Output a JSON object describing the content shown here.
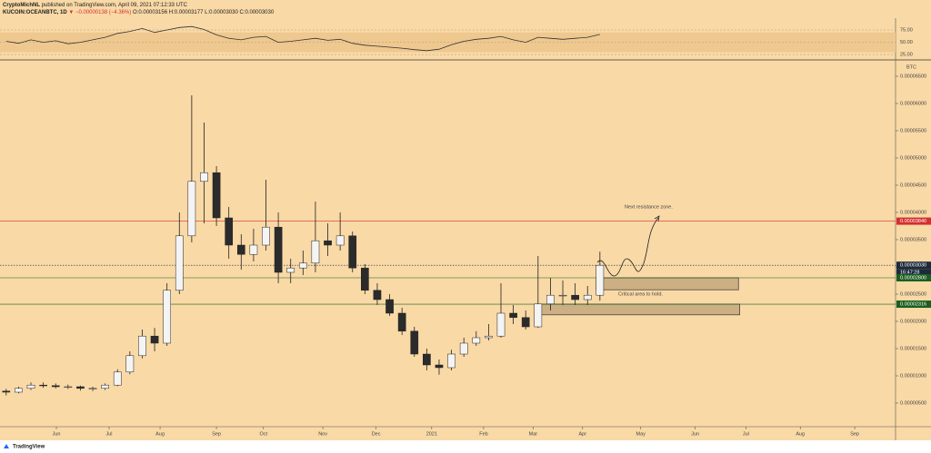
{
  "header": {
    "author": "CryptoMichNL",
    "published": "published on TradingView.com, April 09, 2021 07:12:33 UTC",
    "symbol": "KUCOIN:OCEANBTC, 1D",
    "change": "▼ −0.00000138 (−4.36%)",
    "open": "O:0.00003156",
    "high": "H:0.00003177",
    "low": "L:0.00003030",
    "close": "C:0.00003030",
    "countdown": "16:47:28",
    "logo": "TradingView"
  },
  "chart_data": [
    {
      "type": "candlestick",
      "unit": "BTC",
      "x": [
        0.5,
        1.5,
        2.5,
        3.5,
        4.5,
        5.5,
        6.5,
        7.5,
        8.5,
        9.5,
        10.5,
        11.5,
        12.5,
        13.5,
        14.5,
        15.5,
        16.5,
        17.5,
        18.5,
        19.5,
        20.5,
        21.5,
        22.5,
        23.5,
        24.5,
        25.5,
        26.5,
        27.5,
        28.5,
        29.5,
        30.5,
        31.5,
        32.5,
        33.5,
        34.5,
        35.5,
        36.5,
        37.5,
        38.5,
        39.5,
        40.5,
        41.5,
        42.5,
        43.5,
        44.5,
        45.5,
        46.5,
        47.5,
        48.5
      ],
      "open": [
        7.2e-06,
        7e-06,
        7.7e-06,
        8.3e-06,
        8.2e-06,
        8e-06,
        8e-06,
        7.7e-06,
        7.7e-06,
        8.3e-06,
        1.07e-05,
        1.37e-05,
        1.73e-05,
        1.6e-05,
        2.57e-05,
        3.57e-05,
        4.57e-05,
        4.73e-05,
        3.9e-05,
        3.4e-05,
        3.23e-05,
        3.4e-05,
        3.73e-05,
        2.9e-05,
        2.98e-05,
        3.07e-05,
        3.48e-05,
        3.4e-05,
        3.57e-05,
        2.98e-05,
        2.57e-05,
        2.4e-05,
        2.15e-05,
        1.82e-05,
        1.4e-05,
        1.2e-05,
        1.15e-05,
        1.4e-05,
        1.6e-05,
        1.7e-05,
        1.73e-05,
        2.15e-05,
        2.07e-05,
        1.9e-05,
        2.32e-05,
        2.48e-05,
        2.48e-05,
        2.4e-05,
        2.48e-05
      ],
      "high": [
        7.6e-06,
        8e-06,
        8.8e-06,
        8.8e-06,
        8.6e-06,
        8.4e-06,
        8.2e-06,
        8e-06,
        8.6e-06,
        1.12e-05,
        1.45e-05,
        1.85e-05,
        1.88e-05,
        2.7e-05,
        4e-05,
        6.15e-05,
        5.65e-05,
        4.85e-05,
        4.1e-05,
        3.6e-05,
        3.7e-05,
        4.6e-05,
        4e-05,
        3.15e-05,
        3.3e-05,
        4.2e-05,
        3.8e-05,
        4e-05,
        3.65e-05,
        3.05e-05,
        2.7e-05,
        2.5e-05,
        2.25e-05,
        1.9e-05,
        1.5e-05,
        1.3e-05,
        1.48e-05,
        1.7e-05,
        1.82e-05,
        1.95e-05,
        2.7e-05,
        2.3e-05,
        2.2e-05,
        3.2e-05,
        2.8e-05,
        2.75e-05,
        2.7e-05,
        2.65e-05,
        3.28e-05
      ],
      "low": [
        6.4e-06,
        6.8e-06,
        7.4e-06,
        7.8e-06,
        7.7e-06,
        7.6e-06,
        7.3e-06,
        7.2e-06,
        7.4e-06,
        8.1e-06,
        1.03e-05,
        1.32e-05,
        1.45e-05,
        1.55e-05,
        2.5e-05,
        3.45e-05,
        3.8e-05,
        3.75e-05,
        3.15e-05,
        2.95e-05,
        3.1e-05,
        3.3e-05,
        2.7e-05,
        2.7e-05,
        2.85e-05,
        2.9e-05,
        3.2e-05,
        3.3e-05,
        2.9e-05,
        2.5e-05,
        2.3e-05,
        2.1e-05,
        1.75e-05,
        1.35e-05,
        1.1e-05,
        1.02e-05,
        1.1e-05,
        1.35e-05,
        1.55e-05,
        1.65e-05,
        1.7e-05,
        1.95e-05,
        1.85e-05,
        1.88e-05,
        2.2e-05,
        2.3e-05,
        2.3e-05,
        2.3e-05,
        2.38e-05
      ],
      "close": [
        7e-06,
        7.7e-06,
        8.3e-06,
        8.2e-06,
        8e-06,
        8e-06,
        7.7e-06,
        7.7e-06,
        8.3e-06,
        1.07e-05,
        1.37e-05,
        1.73e-05,
        1.6e-05,
        2.57e-05,
        3.57e-05,
        4.57e-05,
        4.73e-05,
        3.9e-05,
        3.4e-05,
        3.23e-05,
        3.4e-05,
        3.73e-05,
        2.9e-05,
        2.98e-05,
        3.07e-05,
        3.48e-05,
        3.4e-05,
        3.57e-05,
        2.98e-05,
        2.57e-05,
        2.4e-05,
        2.15e-05,
        1.82e-05,
        1.4e-05,
        1.2e-05,
        1.15e-05,
        1.4e-05,
        1.6e-05,
        1.7e-05,
        1.73e-05,
        2.15e-05,
        2.07e-05,
        1.9e-05,
        2.32e-05,
        2.48e-05,
        2.48e-05,
        2.4e-05,
        2.48e-05,
        3.03e-05
      ],
      "up_color": "#f4f4f4",
      "down_color": "#2b2b2b",
      "xlim": [
        0,
        72.4
      ],
      "xticks": [
        {
          "value": 4.56,
          "label": "Jun"
        },
        {
          "value": 8.82,
          "label": "Jul"
        },
        {
          "value": 12.94,
          "label": "Aug"
        },
        {
          "value": 17.5,
          "label": "Sep"
        },
        {
          "value": 21.3,
          "label": "Oct"
        },
        {
          "value": 26.1,
          "label": "Nov"
        },
        {
          "value": 30.4,
          "label": "Dec"
        },
        {
          "value": 34.9,
          "label": "2021"
        },
        {
          "value": 39.1,
          "label": "Feb"
        },
        {
          "value": 43.1,
          "label": "Mar"
        },
        {
          "value": 47.1,
          "label": "Apr"
        },
        {
          "value": 51.8,
          "label": "May"
        },
        {
          "value": 56.2,
          "label": "Jun"
        },
        {
          "value": 60.3,
          "label": "Jul"
        },
        {
          "value": 64.7,
          "label": "Aug"
        },
        {
          "value": 69.1,
          "label": "Sep"
        }
      ],
      "ylim": [
        0,
        6.8e-05
      ],
      "yticks": [
        {
          "value": 5e-06,
          "label": "0.00000500"
        },
        {
          "value": 1e-05,
          "label": "0.00001000"
        },
        {
          "value": 1.5e-05,
          "label": "0.00001500"
        },
        {
          "value": 2e-05,
          "label": "0.00002000"
        },
        {
          "value": 2.5e-05,
          "label": "0.00002500"
        },
        {
          "value": 3e-05,
          "label": "0.00003000"
        },
        {
          "value": 3.5e-05,
          "label": "0.00003500"
        },
        {
          "value": 4e-05,
          "label": "0.00004000"
        },
        {
          "value": 4.5e-05,
          "label": "0.00004500"
        },
        {
          "value": 5e-05,
          "label": "0.00005000"
        },
        {
          "value": 5.5e-05,
          "label": "0.00005500"
        },
        {
          "value": 6e-05,
          "label": "0.00006000"
        },
        {
          "value": 6.5e-05,
          "label": "0.00006500"
        }
      ],
      "grid": false,
      "levels": [
        {
          "value": 3.84e-05,
          "label": "0.00003840",
          "color": "#d32f2f",
          "style": "solid"
        },
        {
          "value": 3.03e-05,
          "label": "0.00003030",
          "color": "#1c2a3a",
          "style": "dotted"
        },
        {
          "value": 2.8e-05,
          "label": "0.00002800",
          "color": "#1b5e20",
          "style": "solid"
        },
        {
          "value": 2.316e-05,
          "label": "0.00002316",
          "color": "#1b5e20",
          "style": "solid"
        }
      ],
      "zones": [
        {
          "x": [
            48.2,
            59.7
          ],
          "y": [
            2.8e-05,
            2.58e-05
          ]
        },
        {
          "x": [
            43.6,
            59.8
          ],
          "y": [
            2.316e-05,
            2.12e-05
          ]
        }
      ],
      "annotations": [
        "Next resistance zone.",
        "Critical area to hold."
      ]
    },
    {
      "type": "line",
      "name": "RSI",
      "x": [
        0.5,
        1.5,
        2.5,
        3.5,
        4.5,
        5.5,
        6.5,
        7.5,
        8.5,
        9.5,
        10.5,
        11.5,
        12.5,
        13.5,
        14.5,
        15.5,
        16.5,
        17.5,
        18.5,
        19.5,
        20.5,
        21.5,
        22.5,
        23.5,
        24.5,
        25.5,
        26.5,
        27.5,
        28.5,
        29.5,
        30.5,
        31.5,
        32.5,
        33.5,
        34.5,
        35.5,
        36.5,
        37.5,
        38.5,
        39.5,
        40.5,
        41.5,
        42.5,
        43.5,
        44.5,
        45.5,
        46.5,
        47.5,
        48.5
      ],
      "values": [
        52,
        48,
        55,
        50,
        53,
        47,
        50,
        55,
        60,
        68,
        72,
        78,
        70,
        75,
        80,
        82,
        76,
        65,
        58,
        55,
        60,
        62,
        50,
        52,
        55,
        58,
        54,
        56,
        48,
        44,
        42,
        40,
        38,
        35,
        33,
        36,
        45,
        52,
        56,
        58,
        62,
        55,
        50,
        60,
        58,
        56,
        58,
        60,
        66
      ],
      "color": "#333333",
      "band": [
        30,
        70
      ],
      "band_color": "#efc88f",
      "xlim": [
        0,
        72.4
      ],
      "ylim": [
        16,
        99
      ],
      "yticks": [
        {
          "value": 25,
          "label": "25.00"
        },
        {
          "value": 50,
          "label": "50.00"
        },
        {
          "value": 75,
          "label": "75.00"
        }
      ]
    }
  ]
}
